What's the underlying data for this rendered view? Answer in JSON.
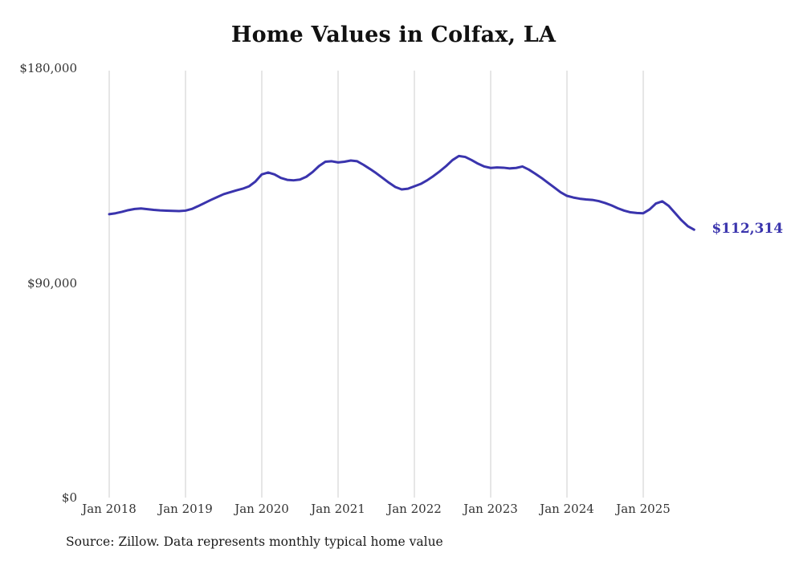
{
  "chart_data": {
    "type": "line",
    "title": "Home Values in Colfax, LA",
    "end_label": "$112,314",
    "source": "Source: Zillow. Data represents monthly typical home value",
    "line_color": "#3a34ad",
    "gridline_color": "#cccccc",
    "grid": "vertical-only",
    "legend": "none",
    "ylim": [
      0,
      180000
    ],
    "y_ticks": [
      {
        "label": "$0",
        "value": 0
      },
      {
        "label": "$90,000",
        "value": 90000
      },
      {
        "label": "$180,000",
        "value": 180000
      }
    ],
    "x_ticks": [
      "Jan 2018",
      "Jan 2019",
      "Jan 2020",
      "Jan 2021",
      "Jan 2022",
      "Jan 2023",
      "Jan 2024",
      "Jan 2025"
    ],
    "series": [
      {
        "name": "Typical home value (monthly)",
        "x_start": "2018-01",
        "x_interval": "month",
        "months": [
          "2018-01",
          "2018-02",
          "2018-03",
          "2018-04",
          "2018-05",
          "2018-06",
          "2018-07",
          "2018-08",
          "2018-09",
          "2018-10",
          "2018-11",
          "2018-12",
          "2019-01",
          "2019-02",
          "2019-03",
          "2019-04",
          "2019-05",
          "2019-06",
          "2019-07",
          "2019-08",
          "2019-09",
          "2019-10",
          "2019-11",
          "2019-12",
          "2020-01",
          "2020-02",
          "2020-03",
          "2020-04",
          "2020-05",
          "2020-06",
          "2020-07",
          "2020-08",
          "2020-09",
          "2020-10",
          "2020-11",
          "2020-12",
          "2021-01",
          "2021-02",
          "2021-03",
          "2021-04",
          "2021-05",
          "2021-06",
          "2021-07",
          "2021-08",
          "2021-09",
          "2021-10",
          "2021-11",
          "2021-12",
          "2022-01",
          "2022-02",
          "2022-03",
          "2022-04",
          "2022-05",
          "2022-06",
          "2022-07",
          "2022-08",
          "2022-09",
          "2022-10",
          "2022-11",
          "2022-12",
          "2023-01",
          "2023-02",
          "2023-03",
          "2023-04",
          "2023-05",
          "2023-06",
          "2023-07",
          "2023-08",
          "2023-09",
          "2023-10",
          "2023-11",
          "2023-12",
          "2024-01",
          "2024-02",
          "2024-03",
          "2024-04",
          "2024-05",
          "2024-06",
          "2024-07",
          "2024-08",
          "2024-09",
          "2024-10",
          "2024-11",
          "2024-12",
          "2025-01",
          "2025-02",
          "2025-03",
          "2025-04",
          "2025-05",
          "2025-06",
          "2025-07",
          "2025-08",
          "2025-09"
        ],
        "values": [
          118800,
          119200,
          119800,
          120500,
          121000,
          121200,
          120900,
          120600,
          120400,
          120300,
          120200,
          120100,
          120300,
          121000,
          122200,
          123500,
          124800,
          126000,
          127200,
          128000,
          128800,
          129500,
          130500,
          132500,
          135500,
          136300,
          135500,
          134000,
          133200,
          133000,
          133300,
          134500,
          136500,
          139000,
          140800,
          141000,
          140500,
          140800,
          141300,
          141000,
          139500,
          137800,
          136000,
          134000,
          132000,
          130200,
          129200,
          129500,
          130500,
          131500,
          133000,
          134800,
          136800,
          139000,
          141500,
          143200,
          142800,
          141500,
          140000,
          138800,
          138200,
          138400,
          138300,
          138000,
          138200,
          138800,
          137500,
          135800,
          134000,
          132000,
          130000,
          128000,
          126500,
          125800,
          125300,
          125000,
          124800,
          124300,
          123500,
          122500,
          121300,
          120300,
          119600,
          119300,
          119200,
          120800,
          123300,
          124200,
          122300,
          119300,
          116300,
          113800,
          112314
        ]
      }
    ]
  }
}
